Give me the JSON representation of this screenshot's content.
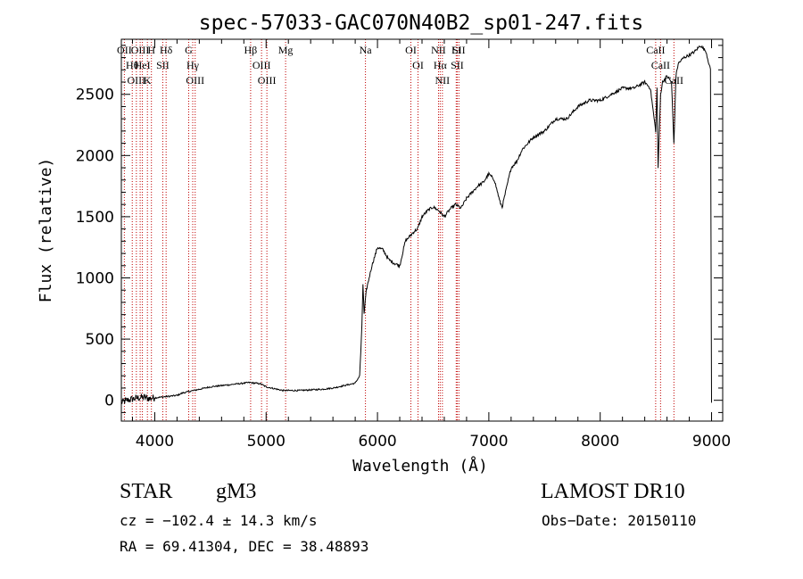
{
  "chart_data": {
    "type": "line",
    "title": "spec-57033-GAC070N40B2_sp01-247.fits",
    "xlabel": "Wavelength (Å)",
    "ylabel": "Flux (relative)",
    "xlim": [
      3700,
      9100
    ],
    "ylim": [
      -170,
      2950
    ],
    "x_ticks": [
      4000,
      5000,
      6000,
      7000,
      8000,
      9000
    ],
    "y_ticks": [
      0,
      500,
      1000,
      1500,
      2000,
      2500
    ],
    "series": [
      {
        "x": [
          3700,
          3750,
          3800,
          3850,
          3900,
          3950,
          4000,
          4050,
          4100,
          4150,
          4200,
          4250,
          4300,
          4350,
          4400,
          4450,
          4500,
          4550,
          4600,
          4650,
          4700,
          4750,
          4800,
          4850,
          4900,
          4950,
          5000,
          5050,
          5100,
          5150,
          5200,
          5300,
          5400,
          5500,
          5600,
          5700,
          5800,
          5840,
          5860,
          5870,
          5880,
          5900,
          5950,
          6000,
          6050,
          6100,
          6150,
          6200,
          6250,
          6300,
          6330,
          6360,
          6400,
          6450,
          6500,
          6550,
          6600,
          6650,
          6700,
          6750,
          6800,
          6850,
          6900,
          6950,
          7000,
          7050,
          7100,
          7120,
          7150,
          7200,
          7250,
          7300,
          7400,
          7500,
          7600,
          7700,
          7800,
          7900,
          8000,
          8100,
          8200,
          8300,
          8400,
          8450,
          8498,
          8510,
          8520,
          8542,
          8560,
          8600,
          8640,
          8662,
          8680,
          8700,
          8750,
          8800,
          8850,
          8900,
          8950,
          8990,
          9000
        ],
        "y": [
          -20,
          0,
          10,
          20,
          25,
          15,
          20,
          25,
          30,
          35,
          40,
          60,
          70,
          80,
          90,
          100,
          110,
          115,
          120,
          125,
          130,
          135,
          140,
          145,
          140,
          135,
          110,
          100,
          90,
          80,
          80,
          80,
          85,
          90,
          100,
          120,
          140,
          200,
          600,
          950,
          700,
          900,
          1100,
          1250,
          1230,
          1150,
          1120,
          1100,
          1300,
          1350,
          1380,
          1400,
          1500,
          1550,
          1580,
          1550,
          1500,
          1560,
          1600,
          1570,
          1650,
          1700,
          1750,
          1780,
          1850,
          1800,
          1620,
          1580,
          1700,
          1900,
          1950,
          2050,
          2150,
          2200,
          2300,
          2300,
          2400,
          2450,
          2450,
          2500,
          2550,
          2550,
          2600,
          2550,
          2200,
          2550,
          1900,
          2500,
          2600,
          2650,
          2600,
          2100,
          2650,
          2750,
          2800,
          2820,
          2850,
          2900,
          2850,
          2700,
          -20
        ]
      }
    ],
    "line_markers": [
      {
        "x": 3727,
        "label": "OII"
      },
      {
        "x": 3798,
        "label": "Hθ"
      },
      {
        "x": 3835,
        "label": "OIII"
      },
      {
        "x": 3869,
        "label": "OIII"
      },
      {
        "x": 3889,
        "label": "HeI"
      },
      {
        "x": 3934,
        "label": "K"
      },
      {
        "x": 3970,
        "label": "H"
      },
      {
        "x": 4072,
        "label": "SII"
      },
      {
        "x": 4102,
        "label": "Hδ"
      },
      {
        "x": 4305,
        "label": "G"
      },
      {
        "x": 4341,
        "label": "Hγ"
      },
      {
        "x": 4363,
        "label": "OIII"
      },
      {
        "x": 4861,
        "label": "Hβ"
      },
      {
        "x": 4959,
        "label": "OIII"
      },
      {
        "x": 5007,
        "label": "OIII"
      },
      {
        "x": 5175,
        "label": "Mg"
      },
      {
        "x": 5892,
        "label": "Na"
      },
      {
        "x": 6300,
        "label": "OI"
      },
      {
        "x": 6364,
        "label": "OI"
      },
      {
        "x": 6548,
        "label": "NII"
      },
      {
        "x": 6563,
        "label": "Hα"
      },
      {
        "x": 6583,
        "label": "NII"
      },
      {
        "x": 6707,
        "label": "Li"
      },
      {
        "x": 6716,
        "label": "SII"
      },
      {
        "x": 6731,
        "label": "SII"
      },
      {
        "x": 8498,
        "label": "CaII"
      },
      {
        "x": 8542,
        "label": "CaII"
      },
      {
        "x": 8662,
        "label": "CaII"
      }
    ]
  },
  "info": {
    "object_class": "STAR",
    "subclass": "gM3",
    "survey": "LAMOST DR10",
    "redshift": "cz = −102.4 ± 14.3 km/s",
    "obs_date": "Obs−Date: 20150110",
    "coords": "RA =  69.41304, DEC =  38.48893"
  }
}
